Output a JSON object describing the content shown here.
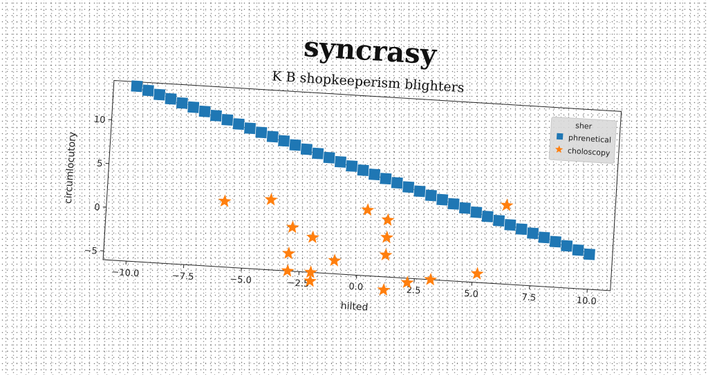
{
  "suptitle": "syncrasy",
  "chart_data": {
    "type": "scatter",
    "title": "K B shopkeeperism blighters",
    "xlabel": "hilted",
    "ylabel": "circumlocutory",
    "xlim": [
      -11,
      11
    ],
    "ylim": [
      -6,
      14.5
    ],
    "xticks": [
      -10.0,
      -7.5,
      -5.0,
      -2.5,
      0.0,
      2.5,
      5.0,
      7.5,
      10.0
    ],
    "xtick_labels": [
      "−10.0",
      "−7.5",
      "−5.0",
      "−2.5",
      "0.0",
      "2.5",
      "5.0",
      "7.5",
      "10.0"
    ],
    "yticks": [
      -5,
      0,
      5,
      10
    ],
    "ytick_labels": [
      "−5",
      "0",
      "5",
      "10"
    ],
    "grid": false,
    "legend": {
      "title": "sher",
      "placement": "top-right",
      "entries": [
        "phrenetical",
        "choloscopy"
      ]
    },
    "series": [
      {
        "name": "phrenetical",
        "marker": "square",
        "color": "#1f77b4",
        "x": [
          -10.0,
          -9.5,
          -9.0,
          -8.5,
          -8.0,
          -7.5,
          -7.0,
          -6.5,
          -6.0,
          -5.5,
          -5.0,
          -4.5,
          -4.0,
          -3.5,
          -3.0,
          -2.5,
          -2.0,
          -1.5,
          -1.0,
          -0.5,
          0.0,
          0.5,
          1.0,
          1.5,
          2.0,
          2.5,
          3.0,
          3.5,
          4.0,
          4.5,
          5.0,
          5.5,
          6.0,
          6.5,
          7.0,
          7.5,
          8.0,
          8.5,
          9.0,
          9.5,
          10.0
        ],
        "y": [
          14.0,
          13.6,
          13.2,
          12.8,
          12.4,
          12.0,
          11.6,
          11.2,
          10.8,
          10.4,
          10.0,
          9.6,
          9.2,
          8.8,
          8.4,
          8.0,
          7.6,
          7.2,
          6.8,
          6.4,
          6.0,
          5.6,
          5.2,
          4.8,
          4.4,
          4.0,
          3.6,
          3.2,
          2.8,
          2.4,
          2.0,
          1.6,
          1.2,
          0.8,
          0.4,
          0.0,
          -0.4,
          -0.8,
          -1.2,
          -1.6,
          -2.0
        ]
      },
      {
        "name": "choloscopy",
        "marker": "star",
        "color": "#ff7f0e",
        "x": [
          -5.9,
          -3.9,
          -2.9,
          -3.0,
          -3.0,
          -2.0,
          -2.0,
          -2.0,
          -1.0,
          0.3,
          1.2,
          1.2,
          1.2,
          1.2,
          2.2,
          3.2,
          5.2,
          6.3
        ],
        "y": [
          1.5,
          2.0,
          -1.0,
          -4.0,
          -6.0,
          -6.0,
          -7.0,
          -2.0,
          -4.5,
          1.5,
          0.5,
          -1.5,
          -3.5,
          -7.5,
          -6.5,
          -6.0,
          -5.0,
          3.0
        ]
      }
    ]
  }
}
